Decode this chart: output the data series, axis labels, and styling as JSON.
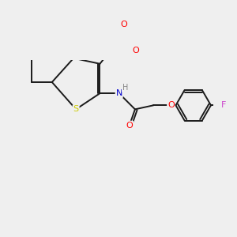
{
  "background_color": "#efefef",
  "bond_color": "#1a1a1a",
  "atom_colors": {
    "O": "#ff0000",
    "N": "#0000cc",
    "S": "#cccc00",
    "F": "#cc44cc",
    "H": "#888888",
    "C": "#1a1a1a"
  },
  "bond_width": 1.4,
  "figsize": [
    3.0,
    3.0
  ],
  "dpi": 100
}
